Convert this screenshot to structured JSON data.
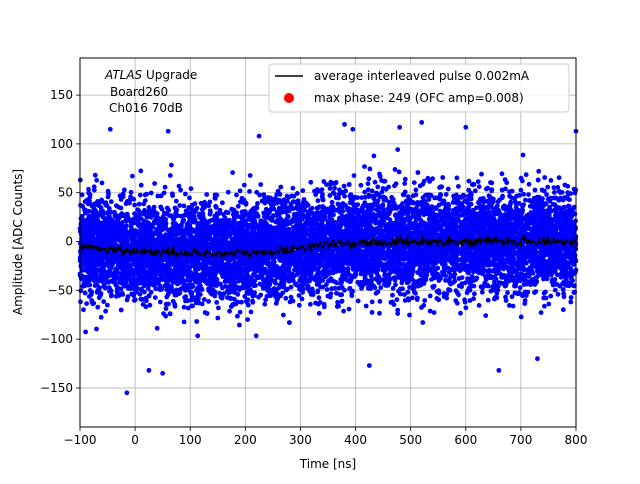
{
  "chart_data": {
    "type": "scatter",
    "xlabel": "Time [ns]",
    "ylabel": "Amplitude [ADC Counts]",
    "xlim": [
      -100,
      800
    ],
    "ylim": [
      -190,
      188
    ],
    "xticks": [
      -100,
      0,
      100,
      200,
      300,
      400,
      500,
      600,
      700,
      800
    ],
    "xtick_labels": [
      "−100",
      "0",
      "100",
      "200",
      "300",
      "400",
      "500",
      "600",
      "700",
      "800"
    ],
    "yticks": [
      -150,
      -100,
      -50,
      0,
      50,
      100,
      150
    ],
    "ytick_labels": [
      "−150",
      "−100",
      "−50",
      "0",
      "50",
      "100",
      "150"
    ],
    "grid": true,
    "legend_position": "top-right",
    "annotation": {
      "experiment": "ATLAS",
      "experiment_suffix": " Upgrade",
      "line2": "Board260",
      "line3": "Ch016 70dB"
    },
    "series": [
      {
        "name": "average interleaved pulse 0.002mA",
        "kind": "line",
        "color": "#000000",
        "x": [
          -100,
          0,
          100,
          200,
          250,
          300,
          350,
          400,
          450,
          500,
          600,
          700,
          800
        ],
        "y": [
          -5,
          -10,
          -12,
          -12,
          -11,
          -6,
          -3,
          -2,
          -1,
          0,
          0,
          0,
          0
        ]
      },
      {
        "name": "max phase: 249 (OFC amp=0.008)",
        "kind": "marker",
        "color": "#ff0000",
        "x": [],
        "y": []
      }
    ],
    "samples": {
      "color": "#0000ff",
      "x_range": [
        -100,
        800
      ],
      "spread_sigma": 25,
      "outliers": [
        {
          "x": -45,
          "y": 115
        },
        {
          "x": 60,
          "y": 113
        },
        {
          "x": 225,
          "y": 108
        },
        {
          "x": 380,
          "y": 120
        },
        {
          "x": 395,
          "y": 115
        },
        {
          "x": 480,
          "y": 117
        },
        {
          "x": 520,
          "y": 122
        },
        {
          "x": 600,
          "y": 117
        },
        {
          "x": 800,
          "y": 113
        },
        {
          "x": -15,
          "y": -155
        },
        {
          "x": 25,
          "y": -132
        },
        {
          "x": 50,
          "y": -135
        },
        {
          "x": 425,
          "y": -127
        },
        {
          "x": 660,
          "y": -132
        },
        {
          "x": 730,
          "y": -120
        }
      ]
    }
  }
}
